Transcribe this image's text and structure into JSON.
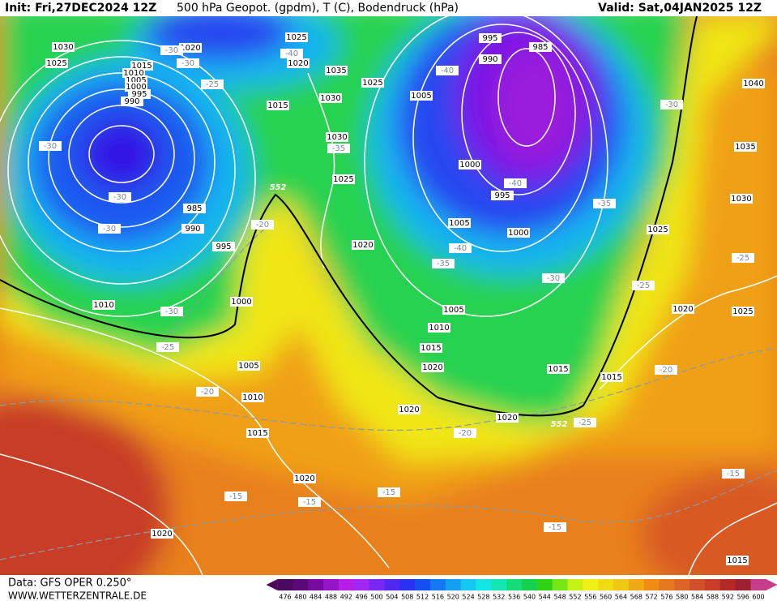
{
  "header": {
    "init": "Init: Fri,27DEC2024 12Z",
    "title": "500 hPa Geopot. (gpdm), T (C), Bodendruck (hPa)",
    "valid": "Valid: Sat,04JAN2025 12Z"
  },
  "footer": {
    "source": "Data: GFS OPER 0.250°",
    "site": "WWW.WETTERZENTRALE.DE"
  },
  "colorbar": {
    "labels": [
      "476",
      "480",
      "484",
      "488",
      "492",
      "496",
      "500",
      "504",
      "508",
      "512",
      "516",
      "520",
      "524",
      "528",
      "532",
      "536",
      "540",
      "544",
      "548",
      "552",
      "556",
      "560",
      "564",
      "568",
      "572",
      "576",
      "580",
      "584",
      "588",
      "592",
      "596",
      "600"
    ],
    "colors": [
      "#4b0a5e",
      "#5a0a78",
      "#780aa0",
      "#9614c8",
      "#b41ee6",
      "#a028f0",
      "#7828f0",
      "#5028f0",
      "#2832f0",
      "#1450f0",
      "#1478f0",
      "#14a0f0",
      "#14c8f0",
      "#14e6e6",
      "#14e6b4",
      "#14dc78",
      "#14d250",
      "#32d214",
      "#78e614",
      "#c8f014",
      "#f0f014",
      "#f0dc14",
      "#f0c814",
      "#f0aa14",
      "#f08c14",
      "#e6781e",
      "#dc6428",
      "#d25028",
      "#c83c28",
      "#b42828",
      "#a01e32",
      "#c83c8c"
    ]
  },
  "map_labels": {
    "pressure": [
      "1030",
      "1025",
      "1015",
      "1010",
      "1005",
      "1000",
      "995",
      "990",
      "985",
      "990",
      "995",
      "1000",
      "1005",
      "1010",
      "1015",
      "1020",
      "1020",
      "1020",
      "1025",
      "1020",
      "1015",
      "1035",
      "1030",
      "1025",
      "1030",
      "1025",
      "1020",
      "995",
      "990",
      "985",
      "1005",
      "1000",
      "995",
      "1005",
      "1000",
      "1005",
      "1010",
      "1015",
      "1020",
      "1020",
      "1020",
      "1015",
      "1015",
      "1025",
      "1030",
      "1035",
      "1040",
      "1020",
      "1025",
      "1015",
      "1010"
    ],
    "temperature": [
      "-30",
      "-30",
      "-25",
      "-30",
      "-30",
      "-30",
      "-30",
      "-25",
      "-20",
      "-20",
      "-40",
      "-35",
      "-40",
      "-40",
      "-35",
      "-40",
      "-35",
      "-30",
      "-30",
      "-25",
      "-25",
      "-20",
      "-25",
      "-20",
      "-15",
      "-15",
      "-15",
      "-15",
      "-15"
    ],
    "height": [
      "552",
      "552"
    ]
  }
}
